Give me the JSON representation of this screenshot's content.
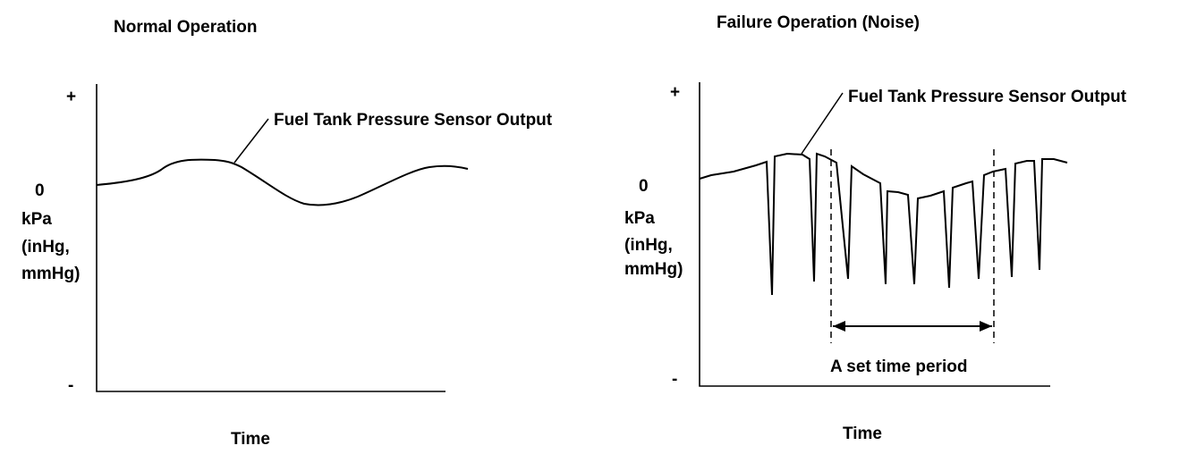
{
  "normal": {
    "title": "Normal Operation",
    "y_plus": "+",
    "y_zero": "0",
    "y_minus": "-",
    "unit_lines": [
      "kPa",
      "(inHg,",
      "mmHg)"
    ],
    "x_label": "Time",
    "curve_label": "Fuel Tank Pressure Sensor Output"
  },
  "failure": {
    "title": "Failure Operation (Noise)",
    "y_plus": "+",
    "y_zero": "0",
    "y_minus": "-",
    "unit_lines": [
      "kPa",
      "(inHg,",
      "mmHg)"
    ],
    "x_label": "Time",
    "curve_label": "Fuel Tank Pressure Sensor Output",
    "period_label": "A set time period"
  }
}
